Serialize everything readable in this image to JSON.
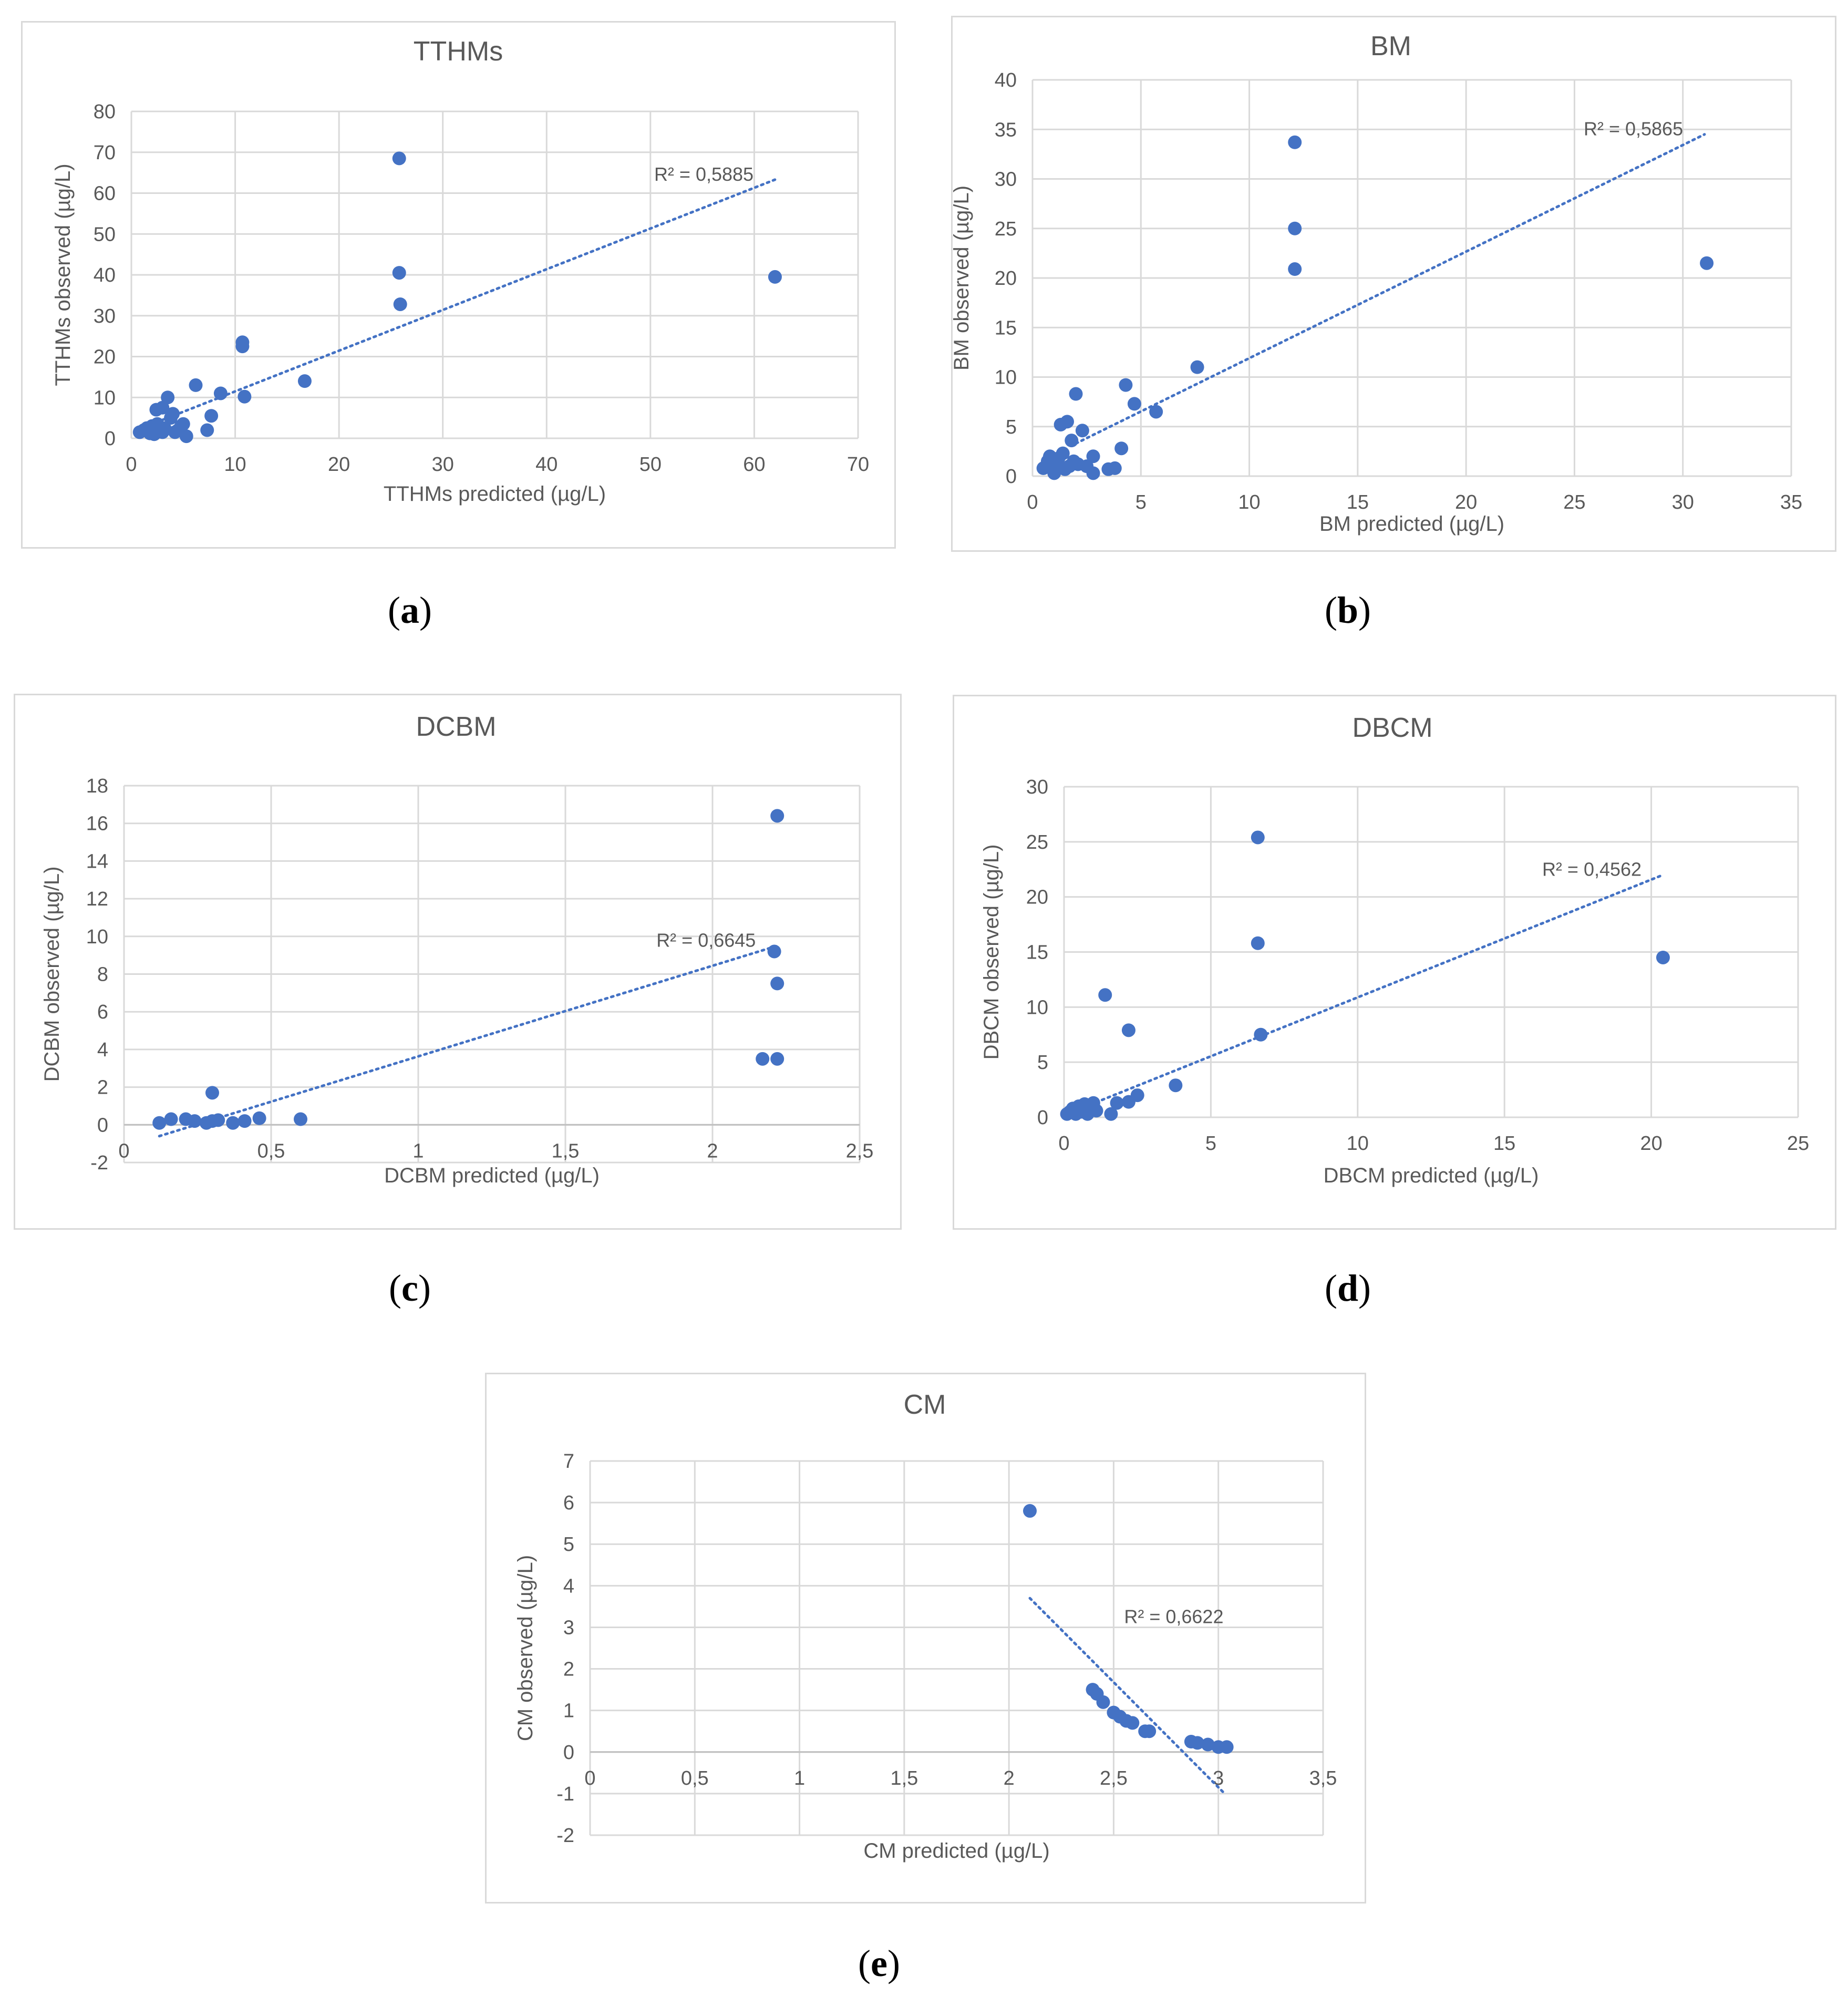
{
  "figure": {
    "panel_labels": [
      "a",
      "b",
      "c",
      "d",
      "e"
    ]
  },
  "colors": {
    "marker": "#4472C4",
    "trendline": "#4472C4",
    "grid": "#d9d9d9",
    "text": "#595959",
    "frame": "#d9d9d9"
  },
  "chart_data": [
    {
      "id": "a",
      "type": "scatter",
      "title": "TTHMs",
      "xlabel": "TTHMs predicted (µg/L)",
      "ylabel": "TTHMs observed (µg/L)",
      "xlim": [
        0,
        70
      ],
      "ylim": [
        0,
        80
      ],
      "xstep": 10,
      "ystep": 10,
      "grid": true,
      "x_ticks": [
        "0",
        "10",
        "20",
        "30",
        "40",
        "50",
        "60",
        "70"
      ],
      "y_ticks": [
        "0",
        "10",
        "20",
        "30",
        "40",
        "50",
        "60",
        "70",
        "80"
      ],
      "r2_label": "R² = 0,5885",
      "trend": {
        "x": [
          3,
          62
        ],
        "y": [
          4.5,
          63.3
        ]
      },
      "points": [
        [
          0.8,
          1.5
        ],
        [
          1.2,
          2
        ],
        [
          1.5,
          2.5
        ],
        [
          1.8,
          1.2
        ],
        [
          2,
          3
        ],
        [
          2.2,
          1
        ],
        [
          2.5,
          3.5
        ],
        [
          2.6,
          2
        ],
        [
          2.4,
          7
        ],
        [
          3,
          7.5
        ],
        [
          3.2,
          2.5
        ],
        [
          3.5,
          10
        ],
        [
          3.8,
          5
        ],
        [
          4,
          6
        ],
        [
          4.2,
          1.5
        ],
        [
          4.5,
          2
        ],
        [
          4.8,
          3
        ],
        [
          5,
          3.5
        ],
        [
          5.3,
          0.5
        ],
        [
          3,
          1.5
        ],
        [
          6.2,
          13
        ],
        [
          7.3,
          2
        ],
        [
          7.7,
          5.5
        ],
        [
          8.6,
          11
        ],
        [
          10.7,
          23.5
        ],
        [
          10.7,
          22.5
        ],
        [
          10.9,
          10.2
        ],
        [
          16.7,
          14
        ],
        [
          25.8,
          68.5
        ],
        [
          25.8,
          40.5
        ],
        [
          25.9,
          32.8
        ],
        [
          62,
          39.5
        ]
      ]
    },
    {
      "id": "b",
      "type": "scatter",
      "title": "BM",
      "xlabel": "BM predicted (µg/L)",
      "ylabel": "BM observed (µg/L)",
      "xlim": [
        0,
        35
      ],
      "ylim": [
        0,
        40
      ],
      "xstep": 5,
      "ystep": 5,
      "grid": true,
      "x_ticks": [
        "0",
        "5",
        "10",
        "15",
        "20",
        "25",
        "30",
        "35"
      ],
      "y_ticks": [
        "0",
        "5",
        "10",
        "15",
        "20",
        "25",
        "30",
        "35",
        "40"
      ],
      "r2_label": "R² = 0,5865",
      "trend": {
        "x": [
          2,
          31
        ],
        "y": [
          3.3,
          34.5
        ]
      },
      "points": [
        [
          0.5,
          0.8
        ],
        [
          0.7,
          1.5
        ],
        [
          0.8,
          2
        ],
        [
          1,
          0.3
        ],
        [
          1.1,
          0.8
        ],
        [
          1.2,
          1.8
        ],
        [
          1.3,
          5.2
        ],
        [
          1.4,
          2.3
        ],
        [
          1.5,
          0.7
        ],
        [
          1.6,
          5.5
        ],
        [
          1.7,
          1
        ],
        [
          1.8,
          3.6
        ],
        [
          1.9,
          1.5
        ],
        [
          2,
          8.3
        ],
        [
          2.1,
          1.2
        ],
        [
          2.3,
          4.6
        ],
        [
          2.5,
          1
        ],
        [
          2.8,
          2
        ],
        [
          2.8,
          0.3
        ],
        [
          3.5,
          0.7
        ],
        [
          3.8,
          0.8
        ],
        [
          4.1,
          2.8
        ],
        [
          4.3,
          9.2
        ],
        [
          4.7,
          7.3
        ],
        [
          5.7,
          6.5
        ],
        [
          7.6,
          11
        ],
        [
          12.1,
          33.7
        ],
        [
          12.1,
          25
        ],
        [
          12.1,
          20.9
        ],
        [
          31.1,
          21.5
        ]
      ]
    },
    {
      "id": "c",
      "type": "scatter",
      "title": "DCBM",
      "xlabel": "DCBM predicted (µg/L)",
      "ylabel": "DCBM observed (µg/L)",
      "xlim": [
        0,
        2.5
      ],
      "ylim": [
        -2,
        18
      ],
      "xstep": 0.5,
      "ystep": 2,
      "grid": true,
      "x_ticks": [
        "0",
        "0,5",
        "1",
        "1,5",
        "2",
        "2,5"
      ],
      "y_ticks": [
        "-2",
        "0",
        "2",
        "4",
        "6",
        "8",
        "10",
        "12",
        "14",
        "16",
        "18"
      ],
      "r2_label": "R² = 0,6645",
      "trend": {
        "x": [
          0.12,
          2.22
        ],
        "y": [
          -0.6,
          9.5
        ]
      },
      "points": [
        [
          0.12,
          0.1
        ],
        [
          0.16,
          0.3
        ],
        [
          0.21,
          0.3
        ],
        [
          0.24,
          0.2
        ],
        [
          0.28,
          0.1
        ],
        [
          0.3,
          0.2
        ],
        [
          0.3,
          1.7
        ],
        [
          0.32,
          0.25
        ],
        [
          0.37,
          0.1
        ],
        [
          0.41,
          0.2
        ],
        [
          0.46,
          0.35
        ],
        [
          0.6,
          0.3
        ],
        [
          2.17,
          3.5
        ],
        [
          2.21,
          9.2
        ],
        [
          2.22,
          3.5
        ],
        [
          2.22,
          7.5
        ],
        [
          2.22,
          16.4
        ]
      ]
    },
    {
      "id": "d",
      "type": "scatter",
      "title": "DBCM",
      "xlabel": "DBCM predicted (µg/L)",
      "ylabel": "DBCM observed (µg/L)",
      "xlim": [
        0,
        25
      ],
      "ylim": [
        0,
        30
      ],
      "xstep": 5,
      "ystep": 5,
      "grid": true,
      "x_ticks": [
        "0",
        "5",
        "10",
        "15",
        "20",
        "25"
      ],
      "y_ticks": [
        "0",
        "5",
        "10",
        "15",
        "20",
        "25",
        "30"
      ],
      "r2_label": "R² = 0,4562",
      "trend": {
        "x": [
          0.1,
          20.4
        ],
        "y": [
          0.3,
          22
        ]
      },
      "points": [
        [
          0.1,
          0.3
        ],
        [
          0.2,
          0.5
        ],
        [
          0.3,
          0.8
        ],
        [
          0.4,
          0.3
        ],
        [
          0.5,
          1
        ],
        [
          0.6,
          0.5
        ],
        [
          0.7,
          1.2
        ],
        [
          0.8,
          0.3
        ],
        [
          0.9,
          1
        ],
        [
          1,
          1.3
        ],
        [
          1.1,
          0.6
        ],
        [
          1.4,
          11.1
        ],
        [
          1.6,
          0.3
        ],
        [
          1.8,
          1.3
        ],
        [
          2.2,
          7.9
        ],
        [
          2.2,
          1.4
        ],
        [
          2.5,
          2
        ],
        [
          3.8,
          2.9
        ],
        [
          6.6,
          25.4
        ],
        [
          6.6,
          15.8
        ],
        [
          6.7,
          7.5
        ],
        [
          20.4,
          14.5
        ]
      ]
    },
    {
      "id": "e",
      "type": "scatter",
      "title": "CM",
      "xlabel": "CM predicted (µg/L)",
      "ylabel": "CM observed (µg/L)",
      "xlim": [
        0,
        3.5
      ],
      "ylim": [
        -2,
        7
      ],
      "xstep": 0.5,
      "ystep": 1,
      "grid": true,
      "x_ticks": [
        "0",
        "0,5",
        "1",
        "1,5",
        "2",
        "2,5",
        "3",
        "3,5"
      ],
      "y_ticks": [
        "-2",
        "-1",
        "0",
        "1",
        "2",
        "3",
        "4",
        "5",
        "6",
        "7"
      ],
      "r2_label": "R² = 0,6622",
      "trend": {
        "x": [
          2.1,
          3.03
        ],
        "y": [
          3.7,
          -1.0
        ]
      },
      "points": [
        [
          2.1,
          5.8
        ],
        [
          2.4,
          1.5
        ],
        [
          2.42,
          1.4
        ],
        [
          2.45,
          1.2
        ],
        [
          2.5,
          0.95
        ],
        [
          2.53,
          0.85
        ],
        [
          2.56,
          0.75
        ],
        [
          2.59,
          0.7
        ],
        [
          2.65,
          0.5
        ],
        [
          2.67,
          0.5
        ],
        [
          2.87,
          0.25
        ],
        [
          2.9,
          0.22
        ],
        [
          2.95,
          0.18
        ],
        [
          3.0,
          0.12
        ],
        [
          3.04,
          0.12
        ]
      ]
    }
  ]
}
